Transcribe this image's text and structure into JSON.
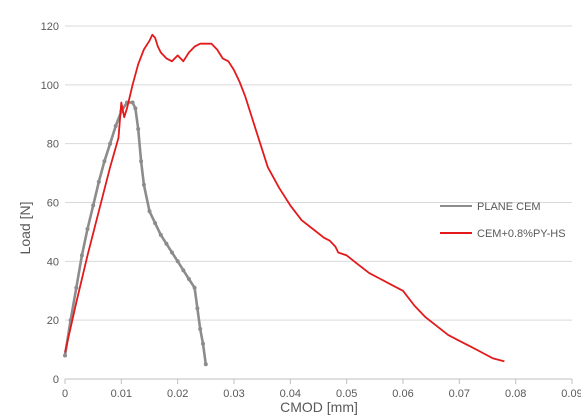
{
  "chart_data": {
    "type": "line",
    "title": "",
    "xlabel": "CMOD [mm]",
    "ylabel": "Load [N]",
    "xlim": [
      0,
      0.09
    ],
    "ylim": [
      0,
      120
    ],
    "x_ticks": [
      "0",
      "0.01",
      "0.02",
      "0.03",
      "0.04",
      "0.05",
      "0.06",
      "0.07",
      "0.08",
      "0.09"
    ],
    "y_ticks": [
      "0",
      "20",
      "40",
      "60",
      "80",
      "100",
      "120"
    ],
    "grid": "horizontal",
    "legend_position": "right",
    "series": [
      {
        "name": "PLANE CEM",
        "color": "#8c8c8c",
        "x": [
          0.0,
          0.001,
          0.002,
          0.003,
          0.004,
          0.005,
          0.006,
          0.007,
          0.008,
          0.009,
          0.01,
          0.011,
          0.012,
          0.0125,
          0.013,
          0.0135,
          0.014,
          0.015,
          0.016,
          0.017,
          0.018,
          0.019,
          0.02,
          0.021,
          0.022,
          0.023,
          0.0235,
          0.024,
          0.0245,
          0.025
        ],
        "y": [
          8,
          20,
          31,
          42,
          51,
          59,
          67,
          74,
          80,
          86,
          91,
          94,
          94,
          92,
          85,
          74,
          66,
          57,
          53,
          49,
          46,
          43,
          40,
          37,
          34,
          31,
          24,
          17,
          12,
          5
        ]
      },
      {
        "name": "CEM+0.8%PY-HS",
        "color": "#e31a1c",
        "x": [
          0.0,
          0.002,
          0.004,
          0.006,
          0.008,
          0.0095,
          0.01,
          0.0105,
          0.011,
          0.012,
          0.013,
          0.014,
          0.015,
          0.0155,
          0.016,
          0.0165,
          0.017,
          0.018,
          0.019,
          0.02,
          0.021,
          0.022,
          0.023,
          0.024,
          0.025,
          0.026,
          0.027,
          0.028,
          0.029,
          0.03,
          0.031,
          0.032,
          0.034,
          0.036,
          0.038,
          0.04,
          0.042,
          0.044,
          0.046,
          0.047,
          0.048,
          0.0485,
          0.05,
          0.052,
          0.054,
          0.056,
          0.058,
          0.06,
          0.062,
          0.064,
          0.066,
          0.068,
          0.07,
          0.072,
          0.074,
          0.076,
          0.078
        ],
        "y": [
          9,
          26,
          42,
          57,
          72,
          82,
          94,
          89,
          92,
          100,
          107,
          112,
          115,
          117,
          116,
          113,
          111,
          109,
          108,
          110,
          108,
          111,
          113,
          114,
          114,
          114,
          112,
          109,
          108,
          105,
          101,
          96,
          84,
          72,
          65,
          59,
          54,
          51,
          48,
          47,
          45,
          43,
          42,
          39,
          36,
          34,
          32,
          30,
          25,
          21,
          18,
          15,
          13,
          11,
          9,
          7,
          6
        ]
      }
    ]
  }
}
